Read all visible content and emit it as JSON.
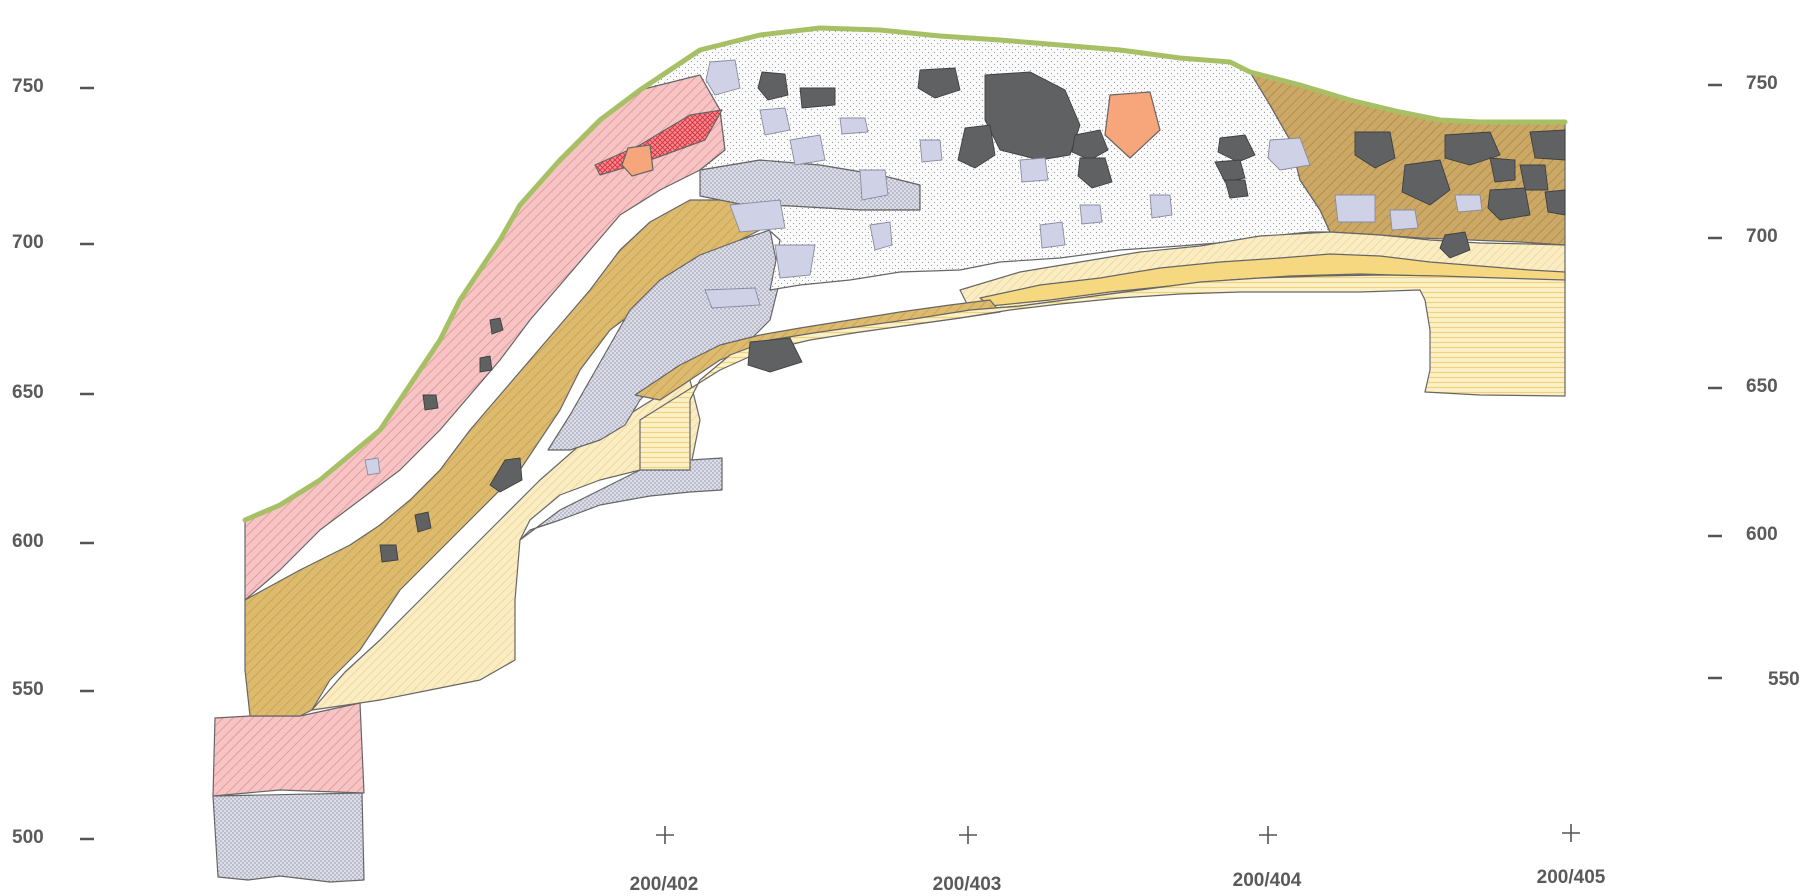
{
  "elevations_left": [
    "750",
    "700",
    "650",
    "600",
    "550",
    "500"
  ],
  "elevations_right": [
    "750",
    "700",
    "650",
    "600",
    "550"
  ],
  "grid_points": [
    "200/402",
    "200/403",
    "200/404",
    "200/405"
  ],
  "colors": {
    "pink_layer": "#f2b3b3",
    "ochre_layer": "#d8b466",
    "pale_yellow_layer": "#f9e7b0",
    "grey_layer": "#d7d9e6",
    "white_fill": "#fafafa",
    "brown_layer": "#c6a25e",
    "yellow_band": "#f6e08f",
    "vegetation_line": "#a8c065",
    "dark_stone": "#5f6163",
    "light_stone": "#cfd2e6",
    "orange_stone": "#f7a57a",
    "red_hatch": "#e8505a"
  }
}
